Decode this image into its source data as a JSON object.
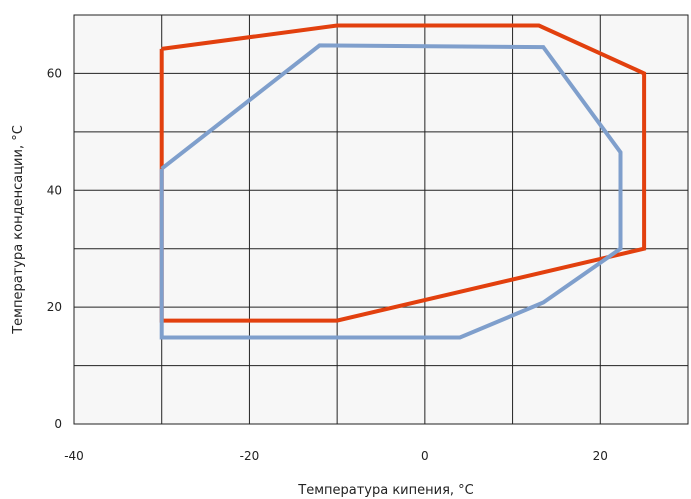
{
  "chart_data": {
    "type": "line",
    "xlabel": "Температура кипения, °C",
    "ylabel": "Температура конденсации, °C",
    "xlim": [
      -40,
      30
    ],
    "ylim": [
      0,
      70
    ],
    "x_ticks": [
      -40,
      -30,
      -20,
      -10,
      0,
      10,
      20,
      30
    ],
    "x_tick_labels": [
      "-40",
      "",
      "-20",
      "",
      "0",
      "",
      "20",
      ""
    ],
    "y_ticks": [
      0,
      10,
      20,
      30,
      40,
      50,
      60,
      70
    ],
    "y_tick_labels": [
      "0",
      "",
      "20",
      "",
      "40",
      "",
      "60",
      ""
    ],
    "grid": true,
    "background": "#f7f7f7",
    "series": [
      {
        "color": "#e2400e",
        "closed": true,
        "x": [
          -30,
          -30,
          -10,
          25,
          25,
          13,
          -10,
          -30
        ],
        "y": [
          64.2,
          17.7,
          17.7,
          30,
          60,
          68.2,
          68.2,
          64.2
        ]
      },
      {
        "color": "#7f9fcc",
        "closed": true,
        "x": [
          -30,
          -30,
          4,
          13.5,
          22.3,
          22.3,
          13.5,
          -12,
          -30
        ],
        "y": [
          43.7,
          14.8,
          14.8,
          20.8,
          30,
          46.5,
          64.5,
          64.8,
          43.7
        ]
      }
    ]
  }
}
